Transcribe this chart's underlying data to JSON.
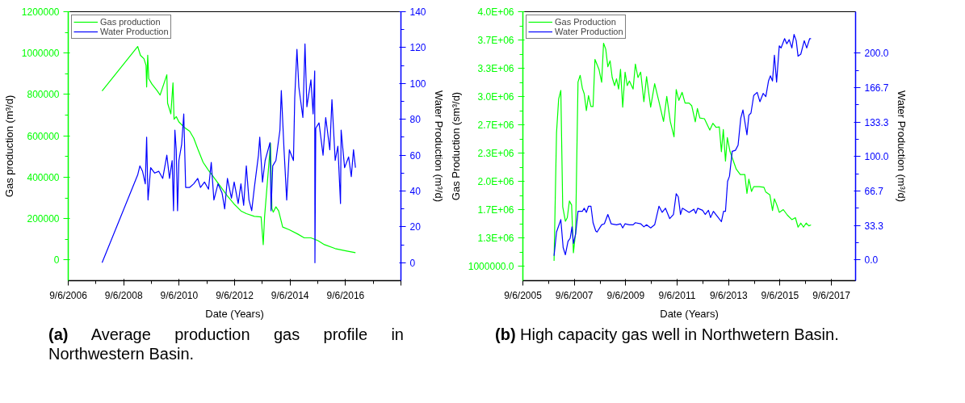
{
  "chart_data": [
    {
      "type": "line",
      "xlabel": "Date (Years)",
      "ylabel": "Gas production (m³/d)",
      "y2label": "Water Production (m³/d)",
      "legend": "top left",
      "annotations": [
        "(a) Average production gas profile in Northwestern Basin."
      ],
      "xlim": [
        "2006-09-06",
        "2018-09-06"
      ],
      "xticks": [
        {
          "value": "2006-09-06",
          "label": "9/6/2006"
        },
        {
          "value": "2008-09-06",
          "label": "9/6/2008"
        },
        {
          "value": "2010-09-06",
          "label": "9/6/2010"
        },
        {
          "value": "2012-09-06",
          "label": "9/6/2012"
        },
        {
          "value": "2014-09-06",
          "label": "9/6/2014"
        },
        {
          "value": "2016-09-06",
          "label": "9/6/2016"
        },
        {
          "value": "2018-09-06",
          "label": null
        }
      ],
      "ylim": [
        -100000,
        1200000
      ],
      "yticks": [
        0,
        200000,
        400000,
        600000,
        800000,
        1000000,
        1200000
      ],
      "y2lim": [
        -10,
        140
      ],
      "y2ticks": [
        0,
        20,
        40,
        60,
        80,
        100,
        120,
        140
      ],
      "series": [
        {
          "name": "Gas production",
          "color": "#00ff00",
          "x": [
            "2007-11-26",
            "2009-03-09",
            "2009-04-14",
            "2009-05-30",
            "2009-06-27",
            "2009-07-05",
            "2009-07-19",
            "2009-08-02",
            "2009-09-13",
            "2009-11-23",
            "2009-12-29",
            "2010-03-28",
            "2010-04-07",
            "2010-05-20",
            "2010-06-17",
            "2010-07-01",
            "2010-07-30",
            "2010-09-03",
            "2010-11-13",
            "2011-01-23",
            "2011-03-17",
            "2011-05-09",
            "2011-07-19",
            "2011-09-28",
            "2011-11-21",
            "2012-03-06",
            "2012-06-03",
            "2012-08-31",
            "2012-11-28",
            "2013-02-07",
            "2013-05-24",
            "2013-08-21",
            "2013-09-18",
            "2013-10-06",
            "2013-12-23",
            "2014-01-10",
            "2014-01-28",
            "2014-03-04",
            "2014-04-09",
            "2014-06-01",
            "2014-08-28",
            "2014-12-13",
            "2015-03-12",
            "2015-06-08",
            "2015-09-05",
            "2015-12-03",
            "2016-04-23",
            "2016-09-11",
            "2017-01-15"
          ],
          "values": [
            817000,
            1032000,
            989000,
            973000,
            941000,
            836000,
            990000,
            876000,
            850000,
            817000,
            797000,
            895000,
            758000,
            706000,
            856000,
            680000,
            693000,
            667000,
            641000,
            622000,
            589000,
            537000,
            472000,
            433000,
            407000,
            354000,
            309000,
            270000,
            237000,
            224000,
            211000,
            208000,
            74000,
            211000,
            563000,
            250000,
            231000,
            257000,
            237000,
            159000,
            146000,
            126000,
            107000,
            107000,
            94000,
            74000,
            55000,
            44000,
            35000
          ]
        },
        {
          "name": "Water Production",
          "color": "#0000ff",
          "axis": "y2",
          "x": [
            "2007-11-26",
            "2009-03-09",
            "2009-04-07",
            "2009-05-12",
            "2009-06-17",
            "2009-07-05",
            "2009-07-23",
            "2009-08-27",
            "2009-10-19",
            "2009-12-11",
            "2010-02-02",
            "2010-03-28",
            "2010-05-02",
            "2010-06-06",
            "2010-06-24",
            "2010-07-12",
            "2010-07-30",
            "2010-08-16",
            "2010-09-03",
            "2010-10-09",
            "2010-11-06",
            "2010-12-01",
            "2011-01-23",
            "2011-03-17",
            "2011-05-09",
            "2011-06-14",
            "2011-08-06",
            "2011-09-28",
            "2011-11-03",
            "2011-12-08",
            "2012-01-31",
            "2012-03-24",
            "2012-04-28",
            "2012-06-03",
            "2012-07-26",
            "2012-08-31",
            "2012-10-23",
            "2012-11-28",
            "2013-01-03",
            "2013-02-07",
            "2013-03-14",
            "2013-04-19",
            "2013-05-24",
            "2013-07-17",
            "2013-08-03",
            "2013-09-08",
            "2013-10-13",
            "2013-12-16",
            "2013-12-30",
            "2014-01-21",
            "2014-03-04",
            "2014-04-26",
            "2014-05-14",
            "2014-06-19",
            "2014-07-24",
            "2014-08-28",
            "2014-10-21",
            "2014-11-07",
            "2014-12-06",
            "2014-12-31",
            "2015-02-22",
            "2015-03-22",
            "2015-04-16",
            "2015-06-08",
            "2015-07-07",
            "2015-07-28",
            "2015-07-31",
            "2015-08-11",
            "2015-09-23",
            "2015-11-15",
            "2015-12-20",
            "2016-02-12",
            "2016-03-11",
            "2016-04-23",
            "2016-05-28",
            "2016-07-02",
            "2016-07-10",
            "2016-08-25",
            "2016-10-17",
            "2016-11-21",
            "2016-12-20",
            "2017-01-15"
          ],
          "values": [
            0,
            49,
            54,
            51,
            44,
            70,
            35,
            53,
            50,
            51,
            47,
            60,
            47,
            57,
            29,
            74,
            63,
            29,
            57,
            66,
            83,
            42,
            42,
            44,
            47,
            42,
            45,
            41,
            56,
            35,
            44,
            39,
            30,
            47,
            36,
            45,
            33,
            44,
            32,
            54,
            35,
            29,
            42,
            60,
            70,
            45,
            57,
            67,
            29,
            54,
            57,
            74,
            96,
            63,
            35,
            63,
            57,
            92,
            119,
            98,
            81,
            122,
            87,
            102,
            83,
            107,
            0,
            75,
            78,
            60,
            81,
            63,
            91,
            57,
            65,
            33,
            74,
            53,
            59,
            48,
            63,
            53
          ]
        }
      ]
    },
    {
      "type": "line",
      "xlabel": "Date (Years)",
      "ylabel": "Gas Production (sm³/d)",
      "y2label": "Water Production (m³/d)",
      "legend": "top left",
      "annotations": [
        "(b) High capacity gas well in Northwetern Basin."
      ],
      "xlim": [
        "2005-09-06",
        "2018-08-15"
      ],
      "xticks": [
        {
          "value": "2005-09-06",
          "label": "9/6/2005"
        },
        {
          "value": "2007-09-06",
          "label": "9/6/2007"
        },
        {
          "value": "2009-09-06",
          "label": "9/6/2009"
        },
        {
          "value": "2011-09-06",
          "label": "9/6/2011"
        },
        {
          "value": "2013-09-06",
          "label": "9/6/2013"
        },
        {
          "value": "2015-09-06",
          "label": "9/6/2015"
        },
        {
          "value": "2017-09-06",
          "label": "9/6/2017"
        }
      ],
      "ylim": [
        833333,
        4000000
      ],
      "yticks": [
        {
          "value": 1000000,
          "label": "1000000.0"
        },
        {
          "value": 1333333,
          "label": "1.3E+06"
        },
        {
          "value": 1666667,
          "label": "1.7E+06"
        },
        {
          "value": 2000000,
          "label": "2.0E+06"
        },
        {
          "value": 2333333,
          "label": "2.3E+06"
        },
        {
          "value": 2666667,
          "label": "2.7E+06"
        },
        {
          "value": 3000000,
          "label": "3.0E+06"
        },
        {
          "value": 3333333,
          "label": "3.3E+06"
        },
        {
          "value": 3666667,
          "label": "3.7E+06"
        },
        {
          "value": 4000000,
          "label": "4.0E+06"
        }
      ],
      "y2lim": [
        -20,
        240
      ],
      "y2ticks": [
        {
          "value": 0,
          "label": "0.0"
        },
        {
          "value": 33.333,
          "label": "33.3"
        },
        {
          "value": 66.667,
          "label": "66.7"
        },
        {
          "value": 100,
          "label": "100.0"
        },
        {
          "value": 133.333,
          "label": "133.3"
        },
        {
          "value": 166.667,
          "label": "166.7"
        },
        {
          "value": 200,
          "label": "200.0"
        }
      ],
      "series": [
        {
          "name": "Gas Production",
          "color": "#00ff00",
          "x": [
            "2006-11-23",
            "2006-12-28",
            "2007-01-27",
            "2007-02-27",
            "2007-03-26",
            "2007-05-03",
            "2007-05-30",
            "2007-06-29",
            "2007-07-30",
            "2007-08-25",
            "2007-09-25",
            "2007-10-29",
            "2007-11-29",
            "2007-12-30",
            "2008-01-25",
            "2008-02-25",
            "2008-03-26",
            "2008-04-30",
            "2008-05-30",
            "2008-06-26",
            "2008-08-22",
            "2008-09-29",
            "2008-10-26",
            "2008-11-26",
            "2008-12-26",
            "2009-01-27",
            "2009-02-26",
            "2009-04-01",
            "2009-04-28",
            "2009-05-28",
            "2009-06-24",
            "2009-07-25",
            "2009-08-28",
            "2009-09-27",
            "2009-10-28",
            "2009-12-20",
            "2010-01-21",
            "2010-02-27",
            "2010-04-06",
            "2010-05-22",
            "2010-06-29",
            "2010-08-26",
            "2010-10-22",
            "2010-12-22",
            "2011-02-25",
            "2011-04-12",
            "2011-06-01",
            "2011-07-24",
            "2011-08-24",
            "2011-10-01",
            "2011-11-16",
            "2011-12-28",
            "2012-02-23",
            "2012-04-01",
            "2012-05-21",
            "2012-06-20",
            "2012-07-25",
            "2012-09-28",
            "2012-12-13",
            "2013-01-26",
            "2013-03-12",
            "2013-04-27",
            "2013-05-27",
            "2013-06-23",
            "2013-07-24",
            "2013-08-19",
            "2013-09-27",
            "2013-12-24",
            "2014-02-19",
            "2014-04-25",
            "2014-05-25",
            "2014-06-21",
            "2014-07-29",
            "2014-08-29",
            "2014-11-13",
            "2015-01-21",
            "2015-02-17",
            "2015-04-15",
            "2015-05-23",
            "2015-06-19",
            "2015-07-20",
            "2015-08-27",
            "2015-10-23",
            "2015-12-19",
            "2016-02-22",
            "2016-04-12",
            "2016-05-20",
            "2016-06-28",
            "2016-08-05",
            "2016-09-12",
            "2016-10-20",
            "2016-11-20"
          ],
          "values": [
            1067000,
            2575000,
            2971000,
            3073000,
            1702000,
            1533000,
            1575000,
            1771000,
            1724000,
            1162000,
            1400000,
            3171000,
            3251000,
            3098000,
            3035000,
            2835000,
            3013000,
            2883000,
            2883000,
            3438000,
            3321000,
            3168000,
            3629000,
            3559000,
            3352000,
            3422000,
            3225000,
            3130000,
            3210000,
            3089000,
            3321000,
            2876000,
            3289000,
            3130000,
            3184000,
            3089000,
            3384000,
            3225000,
            3289000,
            2940000,
            3235000,
            2876000,
            3152000,
            2940000,
            2708000,
            3003000,
            2708000,
            2527000,
            3083000,
            2956000,
            3051000,
            2924000,
            2924000,
            2892000,
            2702000,
            2860000,
            2749000,
            2740000,
            2606000,
            2686000,
            2638000,
            2644000,
            2352000,
            2613000,
            2241000,
            2517000,
            2352000,
            2146000,
            2083000,
            2083000,
            1860000,
            2029000,
            1883000,
            1940000,
            1940000,
            1933000,
            1876000,
            1844000,
            1660000,
            1797000,
            1733000,
            1638000,
            1670000,
            1606000,
            1552000,
            1575000,
            1463000,
            1511000,
            1463000,
            1511000,
            1479000,
            1489000
          ]
        },
        {
          "name": "Water Production",
          "color": "#0000ff",
          "axis": "y2",
          "x": [
            "2006-11-23",
            "2006-12-28",
            "2007-02-27",
            "2007-04-01",
            "2007-05-03",
            "2007-06-09",
            "2007-07-10",
            "2007-08-05",
            "2007-08-25",
            "2007-09-25",
            "2007-10-29",
            "2007-12-30",
            "2008-01-25",
            "2008-02-25",
            "2008-03-26",
            "2008-04-30",
            "2008-05-30",
            "2008-07-07",
            "2008-07-26",
            "2008-09-29",
            "2008-11-07",
            "2008-12-26",
            "2009-02-11",
            "2009-04-28",
            "2009-06-24",
            "2009-07-25",
            "2009-08-28",
            "2009-10-28",
            "2009-12-20",
            "2010-01-21",
            "2010-04-06",
            "2010-05-22",
            "2010-06-29",
            "2010-08-26",
            "2010-10-22",
            "2010-12-22",
            "2011-02-06",
            "2011-03-24",
            "2011-05-24",
            "2011-07-16",
            "2011-08-24",
            "2011-09-23",
            "2011-10-24",
            "2011-11-20",
            "2012-02-23",
            "2012-05-02",
            "2012-05-28",
            "2012-06-24",
            "2012-09-01",
            "2012-10-09",
            "2012-11-24",
            "2012-12-24",
            "2013-02-02",
            "2013-04-12",
            "2013-05-27",
            "2013-06-27",
            "2013-07-24",
            "2013-08-23",
            "2013-09-19",
            "2013-10-27",
            "2013-12-12",
            "2014-01-19",
            "2014-02-26",
            "2014-03-29",
            "2014-05-25",
            "2014-06-21",
            "2014-07-21",
            "2014-08-29",
            "2014-10-17",
            "2014-11-25",
            "2015-01-10",
            "2015-02-17",
            "2015-03-27",
            "2015-04-23",
            "2015-05-23",
            "2015-06-19",
            "2015-07-20",
            "2015-08-27",
            "2015-09-22",
            "2015-11-11",
            "2015-12-12",
            "2016-01-15",
            "2016-02-22",
            "2016-03-24",
            "2016-04-24",
            "2016-05-20",
            "2016-06-28",
            "2016-08-16",
            "2016-09-20",
            "2016-11-01",
            "2016-11-20"
          ],
          "values": [
            4,
            27,
            39,
            12,
            5,
            18,
            21,
            32,
            16,
            25,
            47,
            47,
            50,
            46,
            52,
            52,
            36,
            28,
            27,
            34,
            35,
            44,
            35,
            34,
            35,
            31,
            35,
            34,
            34,
            36,
            35,
            32,
            34,
            31,
            34,
            52,
            46,
            50,
            40,
            44,
            64,
            61,
            44,
            50,
            46,
            49,
            45,
            50,
            48,
            44,
            48,
            41,
            47,
            41,
            37,
            47,
            47,
            76,
            81,
            105,
            106,
            111,
            137,
            145,
            121,
            140,
            142,
            159,
            162,
            153,
            161,
            158,
            173,
            178,
            173,
            198,
            172,
            207,
            205,
            214,
            209,
            213,
            205,
            218,
            212,
            197,
            199,
            212,
            205,
            214,
            214
          ]
        }
      ]
    }
  ]
}
